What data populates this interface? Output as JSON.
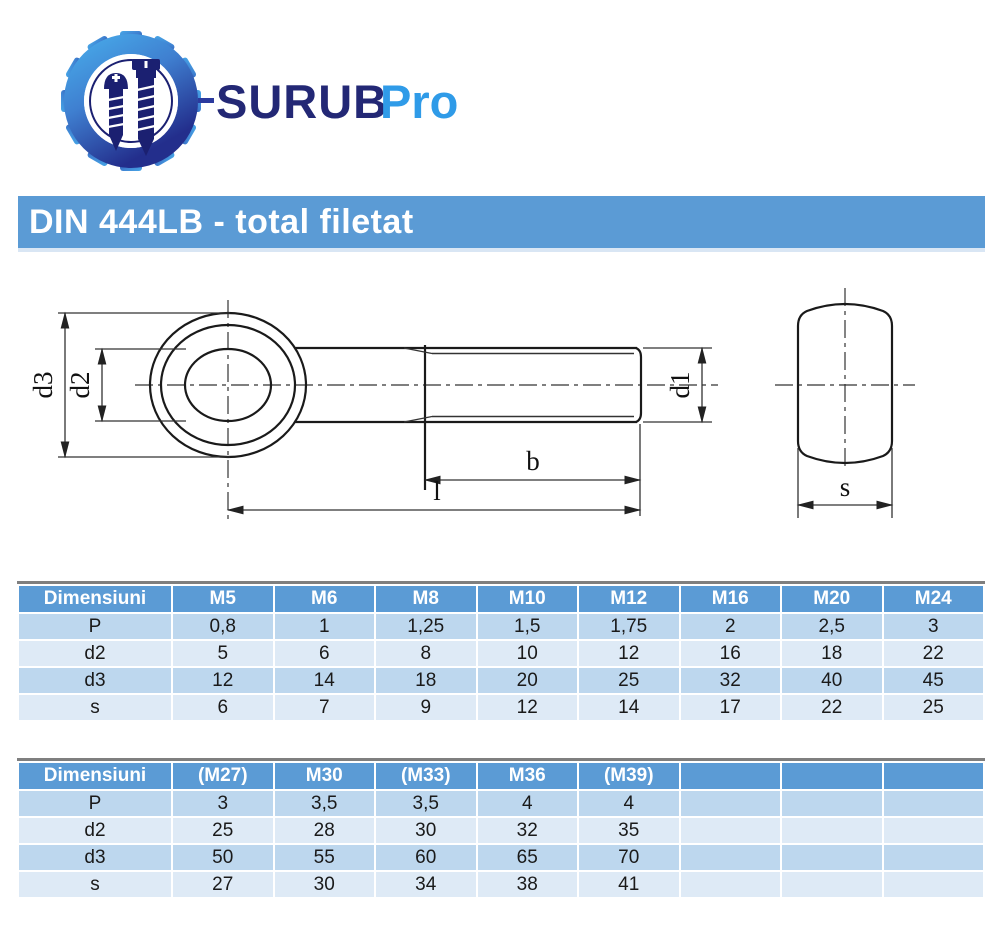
{
  "logo": {
    "brand_primary": "SURUB",
    "brand_secondary": "Pro",
    "colors": {
      "primary_text": "#232875",
      "secondary_text": "#2f9be8",
      "gear_light": "#47a8e8",
      "gear_dark": "#232e8c",
      "screw": "#1b2071"
    }
  },
  "header": {
    "title": "DIN 444LB - total filetat",
    "bg": "#5b9bd5",
    "text_color": "#ffffff"
  },
  "drawing": {
    "labels": {
      "d3": "d3",
      "d2": "d2",
      "d1": "d1",
      "b": "b",
      "l": "l",
      "s": "s"
    }
  },
  "tables": [
    {
      "header": [
        "Dimensiuni",
        "M5",
        "M6",
        "M8",
        "M10",
        "M12",
        "M16",
        "M20",
        "M24"
      ],
      "rows": [
        [
          "P",
          "0,8",
          "1",
          "1,25",
          "1,5",
          "1,75",
          "2",
          "2,5",
          "3"
        ],
        [
          "d2",
          "5",
          "6",
          "8",
          "10",
          "12",
          "16",
          "18",
          "22"
        ],
        [
          "d3",
          "12",
          "14",
          "18",
          "20",
          "25",
          "32",
          "40",
          "45"
        ],
        [
          "s",
          "6",
          "7",
          "9",
          "12",
          "14",
          "17",
          "22",
          "25"
        ]
      ]
    },
    {
      "header": [
        "Dimensiuni",
        "(M27)",
        "M30",
        "(M33)",
        "M36",
        "(M39)",
        "",
        "",
        ""
      ],
      "rows": [
        [
          "P",
          "3",
          "3,5",
          "3,5",
          "4",
          "4",
          "",
          "",
          ""
        ],
        [
          "d2",
          "25",
          "28",
          "30",
          "32",
          "35",
          "",
          "",
          ""
        ],
        [
          "d3",
          "50",
          "55",
          "60",
          "65",
          "70",
          "",
          "",
          ""
        ],
        [
          "s",
          "27",
          "30",
          "34",
          "38",
          "41",
          "",
          "",
          ""
        ]
      ]
    }
  ],
  "table_colors": {
    "header_bg": "#5b9bd5",
    "band_dark": "#bdd7ee",
    "band_light": "#deeaf6"
  }
}
